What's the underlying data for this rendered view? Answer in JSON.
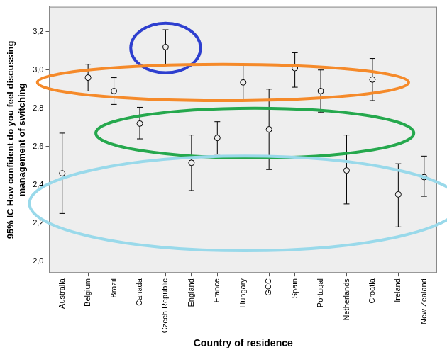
{
  "chart_data": {
    "type": "errorbar",
    "x_label": "Country of residence",
    "y_label": [
      "95% IC How confident do you feel discussing",
      "management of switching"
    ],
    "categories": [
      "Australia",
      "Belgium",
      "Brazil",
      "Canada",
      "Czech Republic",
      "England",
      "France",
      "Hungary",
      "GCC",
      "Spain",
      "Portugal",
      "Netherlands",
      "Croatia",
      "Ireland",
      "New Zealand"
    ],
    "values": [
      2.46,
      2.96,
      2.89,
      2.72,
      3.12,
      2.515,
      2.645,
      2.935,
      2.69,
      3.01,
      2.89,
      2.475,
      2.95,
      2.35,
      2.44
    ],
    "lower": [
      2.25,
      2.89,
      2.82,
      2.64,
      3.03,
      2.37,
      2.56,
      2.84,
      2.48,
      2.91,
      2.78,
      2.3,
      2.84,
      2.18,
      2.34
    ],
    "upper": [
      2.67,
      3.03,
      2.96,
      2.805,
      3.21,
      2.66,
      2.73,
      3.03,
      2.9,
      3.09,
      3.0,
      2.66,
      3.06,
      2.51,
      2.55
    ],
    "color": "#000000",
    "marker": "circle",
    "ylim": [
      1.94,
      3.33
    ],
    "yticks": [
      {
        "value": 2.0,
        "label": "2,0"
      },
      {
        "value": 2.2,
        "label": "2,2"
      },
      {
        "value": 2.4,
        "label": "2,4"
      },
      {
        "value": 2.6,
        "label": "2,6"
      },
      {
        "value": 2.8,
        "label": "2,8"
      },
      {
        "value": 3.0,
        "label": "3,0"
      },
      {
        "value": 3.2,
        "label": "3,2"
      }
    ],
    "grid": false,
    "ellipses": [
      {
        "color": "#2e3fcf",
        "x_range": [
          2.65,
          5.35
        ],
        "y_range": [
          2.986,
          3.244
        ]
      },
      {
        "color": "#f58a2a",
        "x_range": [
          -0.96,
          13.4
        ],
        "y_range": [
          2.84,
          3.03
        ]
      },
      {
        "color": "#25a84d",
        "x_range": [
          1.3,
          13.6
        ],
        "y_range": [
          2.54,
          2.8
        ]
      },
      {
        "color": "#99d9ea",
        "x_range": [
          -1.27,
          15.4
        ],
        "y_range": [
          2.055,
          2.55
        ]
      }
    ]
  }
}
